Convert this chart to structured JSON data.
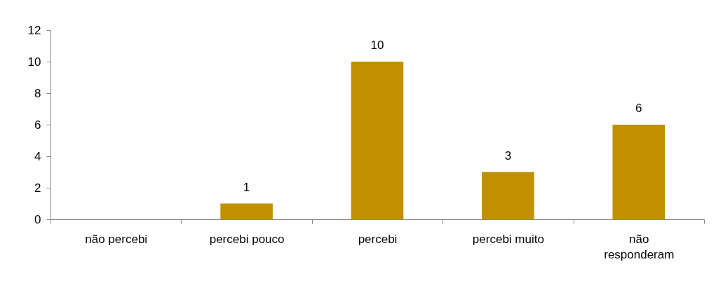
{
  "chart_data": {
    "type": "bar",
    "categories": [
      "não percebi",
      "percebi pouco",
      "percebi",
      "percebi muito",
      "não responderam"
    ],
    "values": [
      0,
      1,
      10,
      3,
      6
    ],
    "value_labels": [
      null,
      "1",
      "10",
      "3",
      "6"
    ],
    "color": "#c09000",
    "ylim": [
      0,
      12
    ],
    "yticks": [
      0,
      2,
      4,
      6,
      8,
      10,
      12
    ],
    "grid": false
  }
}
